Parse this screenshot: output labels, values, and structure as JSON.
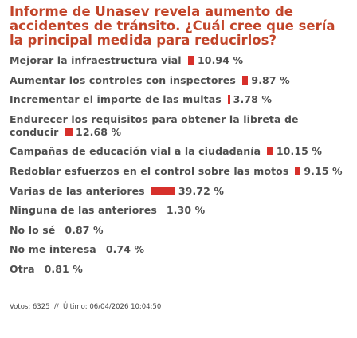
{
  "title": "Informe de Unasev revela aumento de accidentes de tránsito. ¿Cuál cree que sería la principal medida para reducirlos?",
  "options": [
    {
      "label": "Mejorar la infraestructura vial",
      "percent": {
        "value": 10.94,
        "label": "10.94 %"
      }
    },
    {
      "label": "Aumentar los controles con inspectores",
      "percent": {
        "value": 9.87,
        "label": "9.87 %"
      }
    },
    {
      "label": "Incrementar el importe de las multas",
      "percent": {
        "value": 3.78,
        "label": "3.78 %"
      }
    },
    {
      "label": "Endurecer los requisitos para obtener la libreta de conducir",
      "percent": {
        "value": 12.68,
        "label": "12.68 %"
      }
    },
    {
      "label": "Campañas de educación vial a la ciudadanía",
      "percent": {
        "value": 10.15,
        "label": "10.15 %"
      }
    },
    {
      "label": "Redoblar esfuerzos en el control sobre las motos",
      "percent": {
        "value": 9.15,
        "label": "9.15 %"
      }
    },
    {
      "label": "Varias de las anteriores",
      "percent": {
        "value": 39.72,
        "label": "39.72 %"
      }
    },
    {
      "label": "Ninguna de las anteriores",
      "percent": {
        "value": 1.3,
        "label": "1.30 %"
      }
    },
    {
      "label": "No lo sé",
      "percent": {
        "value": 0.87,
        "label": "0.87 %"
      }
    },
    {
      "label": "No me interesa",
      "percent": {
        "value": 0.74,
        "label": "0.74 %"
      }
    },
    {
      "label": "Otra",
      "percent": {
        "value": 0.81,
        "label": "0.81 %"
      }
    }
  ],
  "footer": "Votos: 6325  //  Último: 06/04/2026 10:04:50"
}
